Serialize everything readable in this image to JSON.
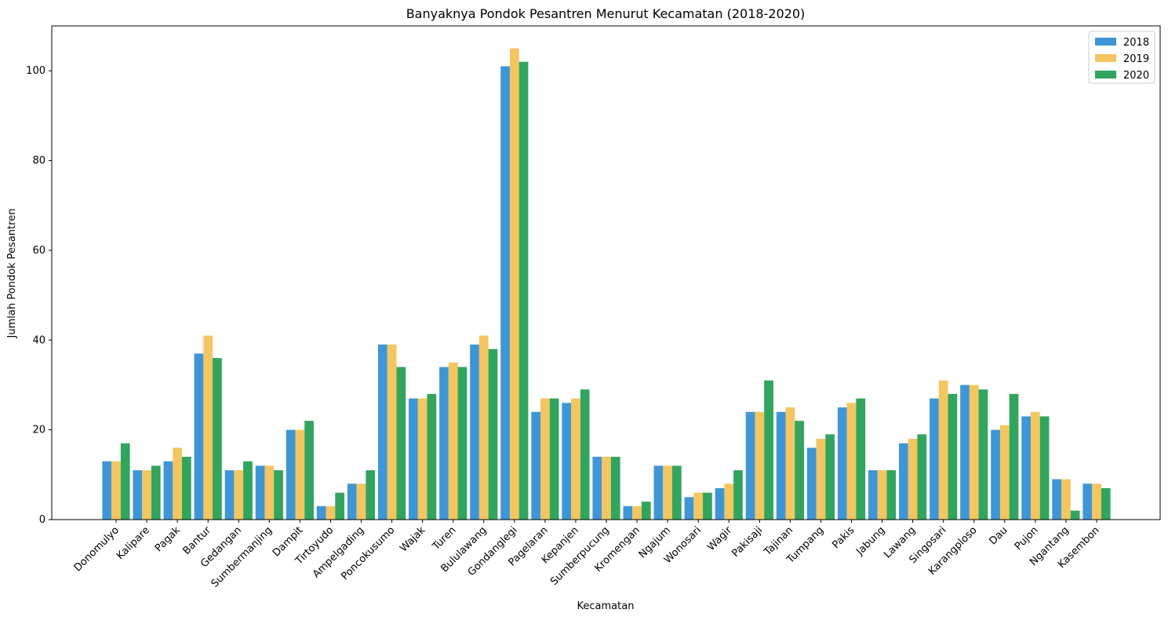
{
  "chart_data": {
    "type": "bar",
    "title": "Banyaknya Pondok Pesantren Menurut Kecamatan (2018-2020)",
    "xlabel": "Kecamatan",
    "ylabel": "Jumlah Pondok Pesantren",
    "ylim": [
      0,
      110
    ],
    "yticks": [
      "0",
      "20",
      "40",
      "60",
      "80",
      "100"
    ],
    "grid": false,
    "legend_position": "top-right",
    "categories": [
      "Donomulyo",
      "Kalipare",
      "Pagak",
      "Bantur",
      "Gedangan",
      "Sumbermanjing",
      "Dampit",
      "Tirtoyudo",
      "Ampelgading",
      "Poncokusumo",
      "Wajak",
      "Turen",
      "Bululawang",
      "Gondanglegi",
      "Pagelaran",
      "Kepanjen",
      "Sumberpucung",
      "Kromengan",
      "Ngajum",
      "Wonosari",
      "Wagir",
      "Pakisaji",
      "Tajinan",
      "Tumpang",
      "Pakis",
      "Jabung",
      "Lawang",
      "Singosari",
      "Karangploso",
      "Dau",
      "Pujon",
      "Ngantang",
      "Kasembon"
    ],
    "series": [
      {
        "name": "2018",
        "color": "#3d96d8",
        "values": [
          13,
          11,
          13,
          37,
          11,
          12,
          20,
          3,
          8,
          39,
          27,
          34,
          39,
          101,
          24,
          26,
          14,
          3,
          12,
          5,
          7,
          24,
          24,
          16,
          25,
          11,
          17,
          27,
          30,
          20,
          23,
          9,
          8
        ]
      },
      {
        "name": "2019",
        "color": "#f5c55e",
        "values": [
          13,
          11,
          16,
          41,
          11,
          12,
          20,
          3,
          8,
          39,
          27,
          35,
          41,
          105,
          27,
          27,
          14,
          3,
          12,
          6,
          8,
          24,
          25,
          18,
          26,
          11,
          18,
          31,
          30,
          21,
          24,
          9,
          8
        ]
      },
      {
        "name": "2020",
        "color": "#2fa55e",
        "values": [
          17,
          12,
          14,
          36,
          13,
          11,
          22,
          6,
          11,
          34,
          28,
          34,
          38,
          102,
          27,
          29,
          14,
          4,
          12,
          6,
          11,
          31,
          22,
          19,
          27,
          11,
          19,
          28,
          29,
          28,
          23,
          2,
          7
        ]
      }
    ]
  }
}
